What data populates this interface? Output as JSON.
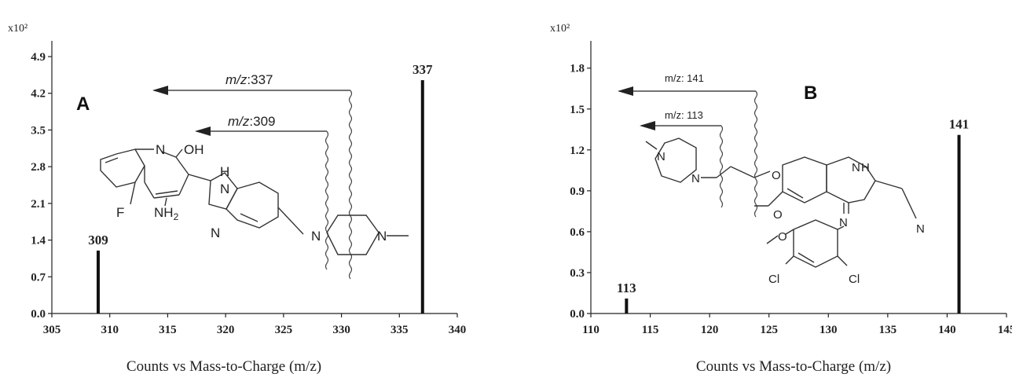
{
  "chart_data": [
    {
      "panel_label": "A",
      "type": "bar",
      "multiplier_label": "x10²",
      "xlabel": "Counts vs Mass-to-Charge (m/z)",
      "ylabel": "",
      "xlim": [
        305,
        340
      ],
      "ylim": [
        0,
        5.2
      ],
      "x_ticks": [
        "305",
        "310",
        "315",
        "320",
        "325",
        "330",
        "335",
        "340"
      ],
      "y_ticks": [
        "0.0",
        "0.7",
        "1.4",
        "2.1",
        "2.8",
        "3.5",
        "4.2",
        "4.9"
      ],
      "peaks": [
        {
          "x": 309,
          "y": 1.2,
          "label": "309"
        },
        {
          "x": 337,
          "y": 4.45,
          "label": "337"
        }
      ],
      "annotations": [
        {
          "prefix": "m/z",
          "value": ":337"
        },
        {
          "prefix": "m/z",
          "value": ":309"
        }
      ]
    },
    {
      "panel_label": "B",
      "type": "bar",
      "multiplier_label": "x10²",
      "xlabel": "Counts vs Mass-to-Charge (m/z)",
      "ylabel": "",
      "xlim": [
        110,
        145
      ],
      "ylim": [
        0,
        2.0
      ],
      "x_ticks": [
        "110",
        "115",
        "120",
        "125",
        "130",
        "135",
        "140",
        "145"
      ],
      "y_ticks": [
        "0.0",
        "0.3",
        "0.6",
        "0.9",
        "1.2",
        "1.5",
        "1.8"
      ],
      "peaks": [
        {
          "x": 113,
          "y": 0.11,
          "label": "113"
        },
        {
          "x": 141,
          "y": 1.31,
          "label": "141"
        }
      ],
      "annotations": [
        {
          "text": "m/z: 141"
        },
        {
          "text": "m/z: 113"
        }
      ]
    }
  ],
  "structure_a": {
    "atoms": {
      "n_top": "N",
      "oh": "OH",
      "f": "F",
      "nh2": "NH",
      "nh2_sub": "2",
      "h": "H",
      "n_imid1": "N",
      "n_imid2": "N",
      "n_pip1": "N",
      "n_pip2": "N"
    }
  },
  "structure_b": {
    "atoms": {
      "nh": "N",
      "h": "H",
      "cn_n": "N",
      "imine_n": "N",
      "o1": "O",
      "o2": "O",
      "cl1": "Cl",
      "cl2": "Cl",
      "pip_n1": "N",
      "pip_n2": "N"
    }
  }
}
